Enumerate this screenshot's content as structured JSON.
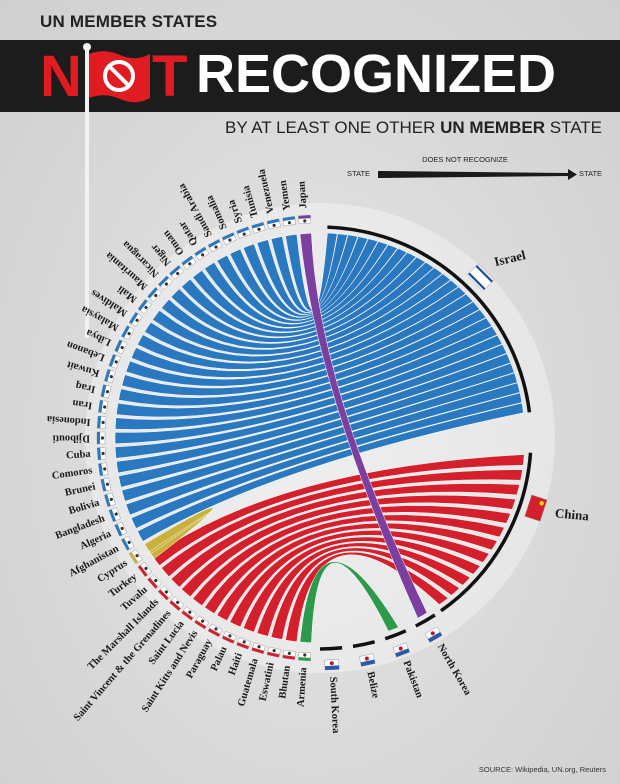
{
  "header": {
    "top_bold": "UN MEMBER",
    "top_rest": "STATES",
    "title_n": "N",
    "title_t": "T",
    "title_rest": "RECOGNIZED",
    "sub_1": "BY AT LEAST ONE OTHER",
    "sub_bold": "UN MEMBER",
    "sub_2": "STATE"
  },
  "legend": {
    "from": "STATE",
    "caption": "DOES NOT RECOGNIZE",
    "to": "STATE"
  },
  "source": "SOURCE: Wikipedia, UN.org, Reuters",
  "colors": {
    "israel": "#2a78bf",
    "china": "#d4202c",
    "cyprus": "#c9b23c",
    "japan": "#7b3fa0",
    "rim": "#111111"
  },
  "targets": [
    {
      "name": "Israel",
      "flag": "israel-flag",
      "color": "#2a78bf"
    },
    {
      "name": "China",
      "flag": "china-flag",
      "color": "#d4202c"
    },
    {
      "name": "North Korea",
      "flag": "north-korea-flag",
      "color": "#1a1a1a"
    },
    {
      "name": "Pakistan",
      "flag": "pakistan-flag",
      "color": "#1a1a1a"
    },
    {
      "name": "Belize",
      "flag": "belize-flag",
      "color": "#1a1a1a"
    },
    {
      "name": "South Korea",
      "flag": "south-korea-flag",
      "color": "#1a1a1a"
    }
  ],
  "sources": [
    {
      "name": "Japan",
      "flag": "japan-flag",
      "color": "#7b3fa0",
      "target": "North Korea"
    },
    {
      "name": "Yemen",
      "flag": "yemen-flag",
      "color": "#2a78bf",
      "target": "Israel"
    },
    {
      "name": "Venezuela",
      "flag": "venezuela-flag",
      "color": "#2a78bf",
      "target": "Israel"
    },
    {
      "name": "Tunisia",
      "flag": "tunisia-flag",
      "color": "#2a78bf",
      "target": "Israel"
    },
    {
      "name": "Syria",
      "flag": "syria-flag",
      "color": "#2a78bf",
      "target": "Israel"
    },
    {
      "name": "Somalia",
      "flag": "somalia-flag",
      "color": "#2a78bf",
      "target": "Israel"
    },
    {
      "name": "Saudi Arabia",
      "flag": "saudi-arabia-flag",
      "color": "#2a78bf",
      "target": "Israel"
    },
    {
      "name": "Qatar",
      "flag": "qatar-flag",
      "color": "#2a78bf",
      "target": "Israel"
    },
    {
      "name": "Oman",
      "flag": "oman-flag",
      "color": "#2a78bf",
      "target": "Israel"
    },
    {
      "name": "Niger",
      "flag": "niger-flag",
      "color": "#2a78bf",
      "target": "Israel"
    },
    {
      "name": "Nicaragua",
      "flag": "nicaragua-flag",
      "color": "#2a78bf",
      "target": "Israel"
    },
    {
      "name": "Mauritania",
      "flag": "mauritania-flag",
      "color": "#2a78bf",
      "target": "Israel"
    },
    {
      "name": "Mali",
      "flag": "mali-flag",
      "color": "#2a78bf",
      "target": "Israel"
    },
    {
      "name": "Maldives",
      "flag": "maldives-flag",
      "color": "#2a78bf",
      "target": "Israel"
    },
    {
      "name": "Malaysia",
      "flag": "malaysia-flag",
      "color": "#2a78bf",
      "target": "Israel"
    },
    {
      "name": "Libya",
      "flag": "libya-flag",
      "color": "#2a78bf",
      "target": "Israel"
    },
    {
      "name": "Lebanon",
      "flag": "lebanon-flag",
      "color": "#2a78bf",
      "target": "Israel"
    },
    {
      "name": "Kuwait",
      "flag": "kuwait-flag",
      "color": "#2a78bf",
      "target": "Israel"
    },
    {
      "name": "Iraq",
      "flag": "iraq-flag",
      "color": "#2a78bf",
      "target": "Israel"
    },
    {
      "name": "Iran",
      "flag": "iran-flag",
      "color": "#2a78bf",
      "target": "Israel"
    },
    {
      "name": "Indonesia",
      "flag": "indonesia-flag",
      "color": "#2a78bf",
      "target": "Israel"
    },
    {
      "name": "Djibouti",
      "flag": "djibouti-flag",
      "color": "#2a78bf",
      "target": "Israel"
    },
    {
      "name": "Cuba",
      "flag": "cuba-flag",
      "color": "#2a78bf",
      "target": "Israel"
    },
    {
      "name": "Comoros",
      "flag": "comoros-flag",
      "color": "#2a78bf",
      "target": "Israel"
    },
    {
      "name": "Brunei",
      "flag": "brunei-flag",
      "color": "#2a78bf",
      "target": "Israel"
    },
    {
      "name": "Bolivia",
      "flag": "bolivia-flag",
      "color": "#2a78bf",
      "target": "Israel"
    },
    {
      "name": "Bangladesh",
      "flag": "bangladesh-flag",
      "color": "#2a78bf",
      "target": "Israel"
    },
    {
      "name": "Algeria",
      "flag": "algeria-flag",
      "color": "#2a78bf",
      "target": "Israel"
    },
    {
      "name": "Afghanistan",
      "flag": "afghanistan-flag",
      "color": "#2a78bf",
      "target": "Israel"
    },
    {
      "name": "Cyprus",
      "flag": "cyprus-flag",
      "color": "#c9b23c",
      "target": "Turkey"
    },
    {
      "name": "Turkey",
      "flag": "turkey-flag",
      "color": "#d4202c",
      "target": "China"
    },
    {
      "name": "Tuvalu",
      "flag": "tuvalu-flag",
      "color": "#d4202c",
      "target": "China"
    },
    {
      "name": "The Marshall Islands",
      "flag": "marshall-islands-flag",
      "color": "#d4202c",
      "target": "China"
    },
    {
      "name": "Saint Vincent & the Grenadines",
      "flag": "saint-vincent-flag",
      "color": "#d4202c",
      "target": "China"
    },
    {
      "name": "Saint Lucia",
      "flag": "saint-lucia-flag",
      "color": "#d4202c",
      "target": "China"
    },
    {
      "name": "Saint Kitts and Nevis",
      "flag": "saint-kitts-flag",
      "color": "#d4202c",
      "target": "China"
    },
    {
      "name": "Paraguay",
      "flag": "paraguay-flag",
      "color": "#d4202c",
      "target": "China"
    },
    {
      "name": "Palau",
      "flag": "palau-flag",
      "color": "#d4202c",
      "target": "China"
    },
    {
      "name": "Haiti",
      "flag": "haiti-flag",
      "color": "#d4202c",
      "target": "China"
    },
    {
      "name": "Guatemala",
      "flag": "guatemala-flag",
      "color": "#d4202c",
      "target": "China"
    },
    {
      "name": "Eswatini",
      "flag": "eswatini-flag",
      "color": "#d4202c",
      "target": "China"
    },
    {
      "name": "Bhutan",
      "flag": "bhutan-flag",
      "color": "#d4202c",
      "target": "China"
    },
    {
      "name": "Armenia",
      "flag": "armenia-flag",
      "color": "#2c9a4a",
      "target": "Pakistan"
    }
  ]
}
